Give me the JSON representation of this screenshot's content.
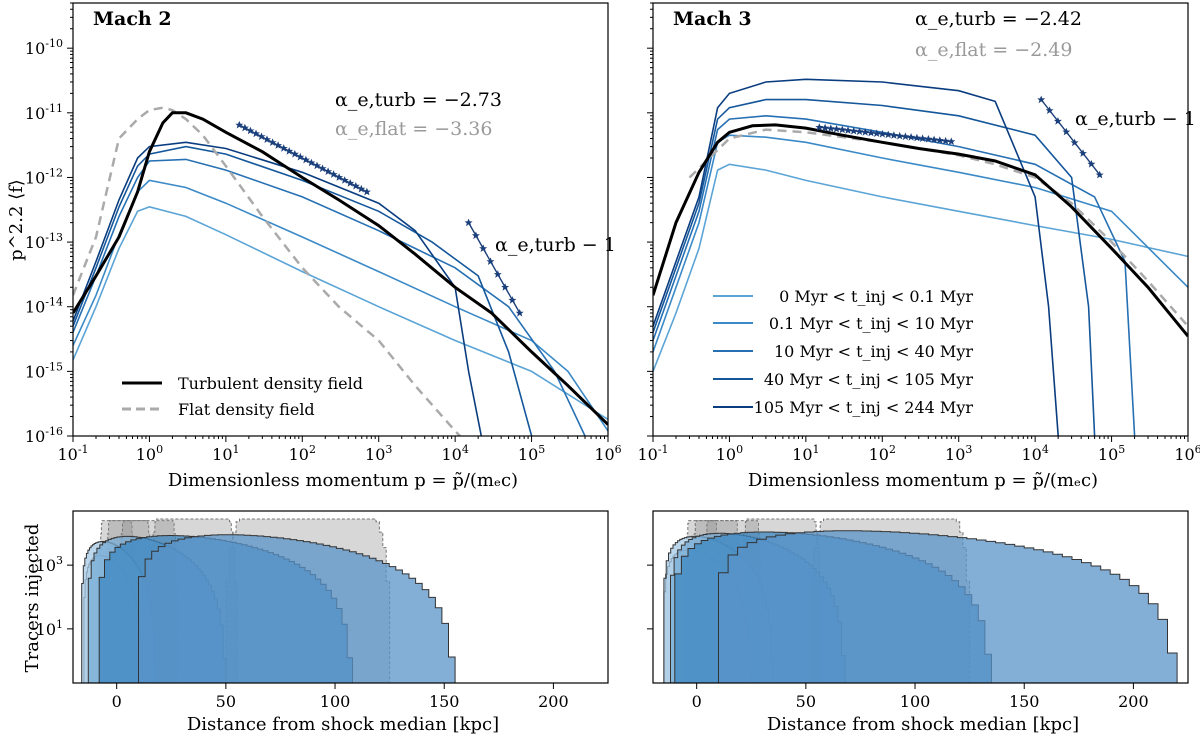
{
  "chart_data": [
    {
      "type": "line",
      "panel": "top-left",
      "title": "Mach 2",
      "xscale": "log",
      "yscale": "log",
      "xlim": [
        0.1,
        1000000
      ],
      "ylim": [
        1e-16,
        5e-10
      ],
      "xlabel": "Dimensionless momentum p = p̃/(mₑc)",
      "ylabel": "p^2.2 ⟨f⟩",
      "xticklabels": [
        "10^-1",
        "10^0",
        "10^1",
        "10^2",
        "10^3",
        "10^4",
        "10^5",
        "10^6"
      ],
      "yticklabels": [
        "10^-16",
        "10^-15",
        "10^-14",
        "10^-13",
        "10^-12",
        "10^-11",
        "10^-10"
      ],
      "annotations": {
        "alpha_turb": "α_e,turb = −2.73",
        "alpha_flat": "α_e,flat = −3.36",
        "slope": "α_e,turb − 1"
      },
      "legend": {
        "location": "lower-left",
        "entries": [
          "Turbulent density field",
          "Flat density field"
        ]
      },
      "series": [
        {
          "name": "Turbulent density field",
          "style": "solid-black",
          "x": [
            0.1,
            0.2,
            0.4,
            0.7,
            1,
            1.5,
            2,
            3,
            5,
            10,
            30,
            100,
            300,
            1000,
            3000,
            10000,
            30000,
            100000,
            300000,
            1000000
          ],
          "y": [
            8e-15,
            3e-14,
            1.2e-13,
            6e-13,
            2.5e-12,
            7e-12,
            1e-11,
            1e-11,
            8e-12,
            5e-12,
            2.5e-12,
            1e-12,
            4.5e-13,
            1.8e-13,
            6.5e-14,
            2e-14,
            8e-15,
            2e-15,
            6e-16,
            1.5e-16
          ]
        },
        {
          "name": "Flat density field",
          "style": "dashed-gray",
          "x": [
            0.1,
            0.2,
            0.4,
            0.7,
            1,
            1.5,
            2,
            3,
            5,
            10,
            30,
            100,
            300,
            1000,
            3000,
            10000,
            20000
          ],
          "y": [
            1.5e-14,
            1.2e-13,
            4e-12,
            8e-12,
            1.1e-11,
            1.2e-11,
            1.1e-11,
            8e-12,
            4.5e-12,
            1.5e-12,
            2.5e-13,
            4e-14,
            1e-14,
            3e-15,
            6e-16,
            1.2e-16,
            5e-17
          ]
        },
        {
          "name": "0 Myr < t_inj < 0.1 Myr",
          "x": [
            0.1,
            0.2,
            0.4,
            0.7,
            1,
            3,
            10,
            100,
            1000,
            10000,
            100000,
            1000000
          ],
          "y": [
            1.5e-15,
            1e-14,
            8e-14,
            3e-13,
            3.5e-13,
            2.5e-13,
            1.3e-13,
            3.5e-14,
            1e-14,
            3e-15,
            1e-15,
            1.8e-16
          ]
        },
        {
          "name": "0.1 Myr < t_inj < 10 Myr",
          "x": [
            0.1,
            0.2,
            0.4,
            0.7,
            1,
            3,
            10,
            100,
            1000,
            10000,
            100000,
            300000,
            1000000
          ],
          "y": [
            2.5e-15,
            1.5e-14,
            1.3e-13,
            6e-13,
            9e-13,
            7e-13,
            4e-13,
            1.2e-13,
            3.5e-14,
            1e-14,
            3e-15,
            1e-15,
            1.2e-16
          ]
        },
        {
          "name": "10 Myr < t_inj < 40 Myr",
          "x": [
            0.1,
            0.2,
            0.4,
            0.7,
            1,
            3,
            10,
            100,
            1000,
            10000,
            50000,
            200000,
            500000
          ],
          "y": [
            4e-15,
            3e-14,
            2.5e-13,
            1e-12,
            1.8e-12,
            1.9e-12,
            1.3e-12,
            5e-13,
            1.5e-13,
            4e-14,
            1e-14,
            1e-15,
            1e-16
          ]
        },
        {
          "name": "40 Myr < t_inj < 105 Myr",
          "x": [
            0.1,
            0.2,
            0.4,
            0.7,
            1,
            3,
            10,
            100,
            1000,
            5000,
            20000,
            50000,
            100000
          ],
          "y": [
            5e-15,
            4e-14,
            3.5e-13,
            1.5e-12,
            2.3e-12,
            3e-12,
            2.3e-12,
            9e-13,
            3e-13,
            1e-13,
            3e-14,
            2e-15,
            1e-16
          ]
        },
        {
          "name": "105 Myr < t_inj < 244 Myr",
          "x": [
            0.1,
            0.2,
            0.4,
            0.7,
            1,
            3,
            10,
            100,
            1000,
            3000,
            10000,
            15000,
            22000
          ],
          "y": [
            6e-15,
            5e-14,
            4.5e-13,
            2e-12,
            3e-12,
            3.5e-12,
            2.8e-12,
            1.2e-12,
            4e-13,
            1.5e-13,
            2e-14,
            1e-15,
            1e-16
          ]
        }
      ]
    },
    {
      "type": "line",
      "panel": "top-right",
      "title": "Mach 3",
      "xscale": "log",
      "yscale": "log",
      "xlim": [
        0.1,
        1000000
      ],
      "ylim": [
        1e-16,
        5e-10
      ],
      "xlabel": "Dimensionless momentum p = p̃/(mₑc)",
      "xticklabels": [
        "10^-1",
        "10^0",
        "10^1",
        "10^2",
        "10^3",
        "10^4",
        "10^5",
        "10^6"
      ],
      "annotations": {
        "alpha_turb": "α_e,turb = −2.42",
        "alpha_flat": "α_e,flat = −2.49",
        "slope": "α_e,turb − 1"
      },
      "legend": {
        "location": "lower-left",
        "entries": [
          "0 Myr < t_inj < 0.1 Myr",
          "0.1 Myr < t_inj < 10 Myr",
          "10 Myr < t_inj < 40 Myr",
          "40 Myr < t_inj < 105 Myr",
          "105 Myr < t_inj < 244 Myr"
        ]
      },
      "series": [
        {
          "name": "Turbulent density field",
          "style": "solid-black",
          "x": [
            0.1,
            0.2,
            0.4,
            0.7,
            1,
            2,
            4,
            10,
            30,
            100,
            300,
            1000,
            3000,
            10000,
            30000,
            100000,
            300000,
            1000000
          ],
          "y": [
            1.5e-14,
            2e-13,
            1.2e-12,
            3.5e-12,
            5e-12,
            6.3e-12,
            6.5e-12,
            5.8e-12,
            4.5e-12,
            3.5e-12,
            2.8e-12,
            2.3e-12,
            1.8e-12,
            1.1e-12,
            3.5e-13,
            8e-14,
            2e-14,
            3.5e-15
          ]
        },
        {
          "name": "Flat density field",
          "style": "dashed-gray",
          "x": [
            0.3,
            1,
            3,
            10,
            100,
            1000,
            3000,
            10000,
            30000,
            100000,
            300000,
            1000000
          ],
          "y": [
            1e-12,
            4e-12,
            5.5e-12,
            5e-12,
            3.5e-12,
            2.2e-12,
            1.6e-12,
            1e-12,
            4e-13,
            1e-13,
            2.5e-14,
            5e-15
          ]
        },
        {
          "name": "0 Myr < t_inj < 0.1 Myr",
          "x": [
            0.1,
            0.2,
            0.4,
            0.7,
            1,
            3,
            10,
            100,
            1000,
            10000,
            100000,
            1000000
          ],
          "y": [
            1e-15,
            8e-15,
            8e-14,
            1.3e-12,
            1.6e-12,
            1.3e-12,
            9e-13,
            5e-13,
            3e-13,
            1.8e-13,
            1.1e-13,
            6e-14
          ]
        },
        {
          "name": "0.1 Myr < t_inj < 10 Myr",
          "x": [
            0.1,
            0.2,
            0.4,
            0.7,
            1,
            3,
            10,
            100,
            1000,
            10000,
            100000,
            1000000
          ],
          "y": [
            2e-15,
            2e-14,
            2e-13,
            3.5e-12,
            4.5e-12,
            4.2e-12,
            3.5e-12,
            2e-12,
            1.2e-12,
            7e-13,
            3e-13,
            2e-14
          ]
        },
        {
          "name": "10 Myr < t_inj < 40 Myr",
          "x": [
            0.1,
            0.2,
            0.4,
            0.7,
            1,
            3,
            10,
            100,
            1000,
            10000,
            60000,
            150000,
            200000
          ],
          "y": [
            3e-15,
            3e-14,
            3e-13,
            5.5e-12,
            8e-12,
            9e-12,
            8e-12,
            5e-12,
            3e-12,
            1.6e-12,
            5e-13,
            5e-14,
            1e-16
          ]
        },
        {
          "name": "40 Myr < t_inj < 105 Myr",
          "x": [
            0.1,
            0.2,
            0.4,
            0.7,
            1,
            3,
            10,
            100,
            1000,
            10000,
            30000,
            50000,
            60000
          ],
          "y": [
            4e-15,
            4e-14,
            4e-13,
            8e-12,
            1.2e-11,
            1.6e-11,
            1.6e-11,
            1.3e-11,
            9e-12,
            4.5e-12,
            1e-12,
            1e-14,
            1e-16
          ]
        },
        {
          "name": "105 Myr < t_inj < 244 Myr",
          "x": [
            0.1,
            0.2,
            0.4,
            0.7,
            1,
            3,
            10,
            100,
            1000,
            3000,
            10000,
            15000,
            20000
          ],
          "y": [
            5e-15,
            5e-14,
            5e-13,
            1.2e-11,
            2e-11,
            3e-11,
            3.3e-11,
            3e-11,
            2.2e-11,
            1.5e-11,
            5e-13,
            1e-14,
            1e-16
          ]
        }
      ]
    },
    {
      "type": "histogram",
      "panel": "bottom-left",
      "xlim": [
        -20,
        225
      ],
      "ylim": [
        0.2,
        50000
      ],
      "yscale": "log",
      "xlabel": "Distance from shock median [kpc]",
      "ylabel": "Tracers injected",
      "xticklabels": [
        "0",
        "50",
        "100",
        "150",
        "200"
      ],
      "yticklabels": [
        "10^1",
        "10^3"
      ],
      "series": [
        {
          "name": "flat 0 Myr < t_inj < 0.1 Myr",
          "range": [
            -8,
            8
          ],
          "peak": 25000,
          "style": "gray"
        },
        {
          "name": "flat 0.1 Myr < t_inj < 10 Myr",
          "range": [
            -5,
            16
          ],
          "peak": 25000,
          "style": "gray"
        },
        {
          "name": "flat 10 Myr < t_inj < 40 Myr",
          "range": [
            1,
            28
          ],
          "peak": 25000,
          "style": "gray"
        },
        {
          "name": "flat 40 Myr < t_inj < 105 Myr",
          "range": [
            15,
            55
          ],
          "peak": 28000,
          "style": "gray"
        },
        {
          "name": "flat 105 Myr < t_inj < 244 Myr",
          "range": [
            50,
            125
          ],
          "peak": 28000,
          "style": "gray"
        },
        {
          "name": "0 Myr < t_inj < 0.1 Myr",
          "range": [
            -15,
            12
          ],
          "peak": 2000,
          "style": "blue"
        },
        {
          "name": "0.1 Myr < t_inj < 10 Myr",
          "range": [
            -16,
            18
          ],
          "peak": 5500,
          "style": "blue"
        },
        {
          "name": "10 Myr < t_inj < 40 Myr",
          "range": [
            -13,
            50
          ],
          "peak": 8000,
          "style": "blue"
        },
        {
          "name": "40 Myr < t_inj < 105 Myr",
          "range": [
            -8,
            108
          ],
          "peak": 8500,
          "style": "blue"
        },
        {
          "name": "105 Myr < t_inj < 244 Myr",
          "range": [
            10,
            155
          ],
          "peak": 9000,
          "style": "blue"
        }
      ]
    },
    {
      "type": "histogram",
      "panel": "bottom-right",
      "xlim": [
        -20,
        225
      ],
      "ylim": [
        0.2,
        50000
      ],
      "yscale": "log",
      "xlabel": "Distance from shock median [kpc]",
      "xticklabels": [
        "0",
        "50",
        "100",
        "150",
        "200"
      ],
      "series": [
        {
          "name": "flat 0 Myr < t_inj < 0.1 Myr",
          "range": [
            -5,
            10
          ],
          "peak": 25000,
          "style": "gray"
        },
        {
          "name": "flat 0.1 Myr < t_inj < 10 Myr",
          "range": [
            -2,
            20
          ],
          "peak": 25000,
          "style": "gray"
        },
        {
          "name": "flat 10 Myr < t_inj < 40 Myr",
          "range": [
            3,
            30
          ],
          "peak": 25000,
          "style": "gray"
        },
        {
          "name": "flat 40 Myr < t_inj < 105 Myr",
          "range": [
            20,
            57
          ],
          "peak": 28000,
          "style": "gray"
        },
        {
          "name": "flat 105 Myr < t_inj < 244 Myr",
          "range": [
            52,
            125
          ],
          "peak": 28000,
          "style": "gray"
        },
        {
          "name": "0 Myr < t_inj < 0.1 Myr",
          "range": [
            -15,
            25
          ],
          "peak": 3000,
          "style": "blue"
        },
        {
          "name": "0.1 Myr < t_inj < 10 Myr",
          "range": [
            -15,
            35
          ],
          "peak": 8000,
          "style": "blue"
        },
        {
          "name": "10 Myr < t_inj < 40 Myr",
          "range": [
            -12,
            68
          ],
          "peak": 10000,
          "style": "blue"
        },
        {
          "name": "40 Myr < t_inj < 105 Myr",
          "range": [
            -10,
            135
          ],
          "peak": 11000,
          "style": "blue"
        },
        {
          "name": "105 Myr < t_inj < 244 Myr",
          "range": [
            10,
            220
          ],
          "peak": 12000,
          "style": "blue"
        }
      ]
    }
  ]
}
